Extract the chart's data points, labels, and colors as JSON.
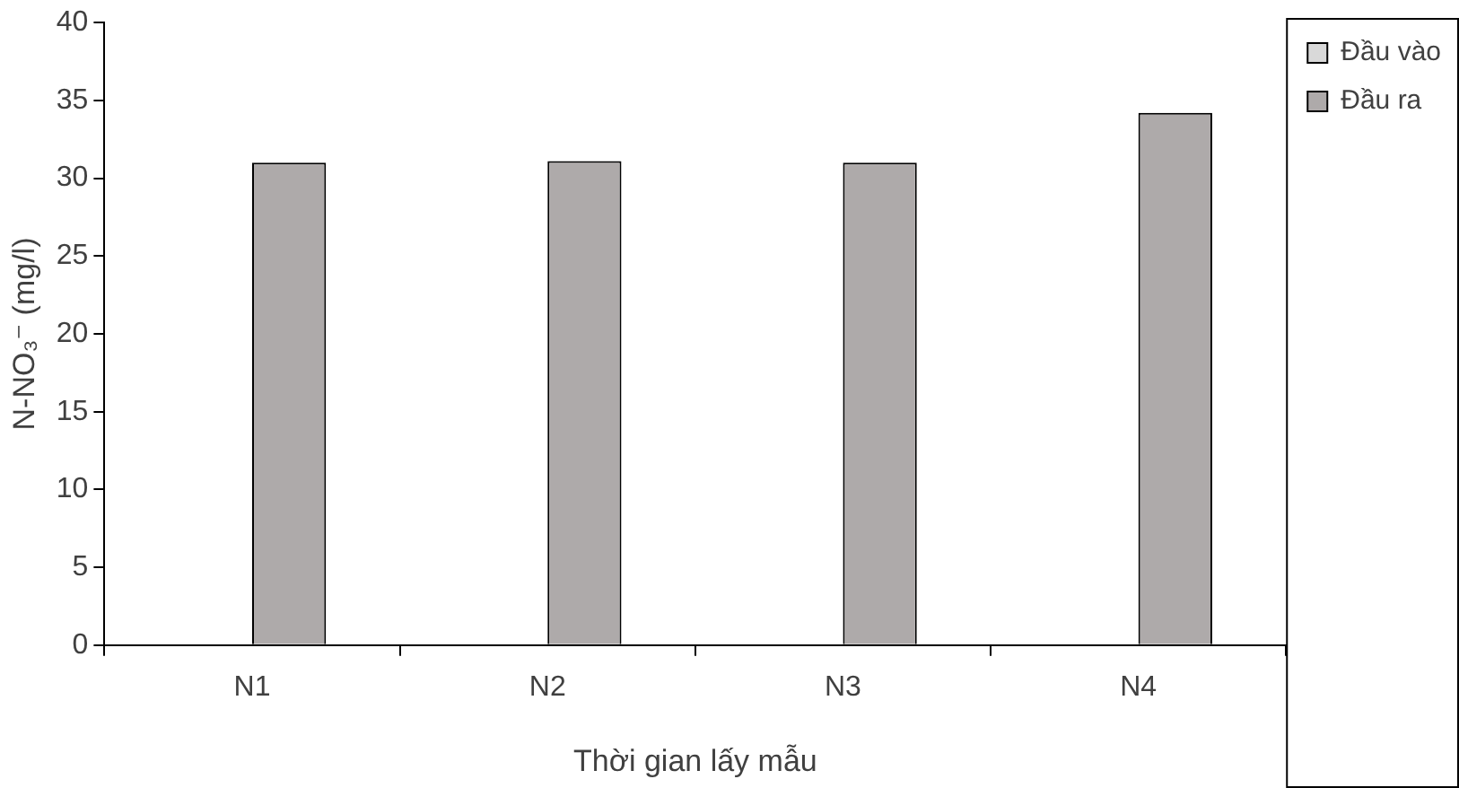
{
  "chart_data": {
    "type": "bar",
    "xlabel": "Thời gian lấy mẫu",
    "ylabel": "N-NO₃⁻ (mg/l)",
    "categories": [
      "N1",
      "N2",
      "N3",
      "N4"
    ],
    "series": [
      {
        "name": "Đầu vào",
        "color": "#d9d9d9",
        "values": [
          0,
          0,
          0,
          0
        ]
      },
      {
        "name": "Đầu ra",
        "color": "#aeaaaa",
        "values": [
          31.0,
          31.1,
          31.0,
          34.2
        ]
      }
    ],
    "ylim": [
      0,
      40
    ],
    "yticks": [
      0,
      5,
      10,
      15,
      20,
      25,
      30,
      35,
      40
    ],
    "grid": false,
    "legend": "top right"
  }
}
